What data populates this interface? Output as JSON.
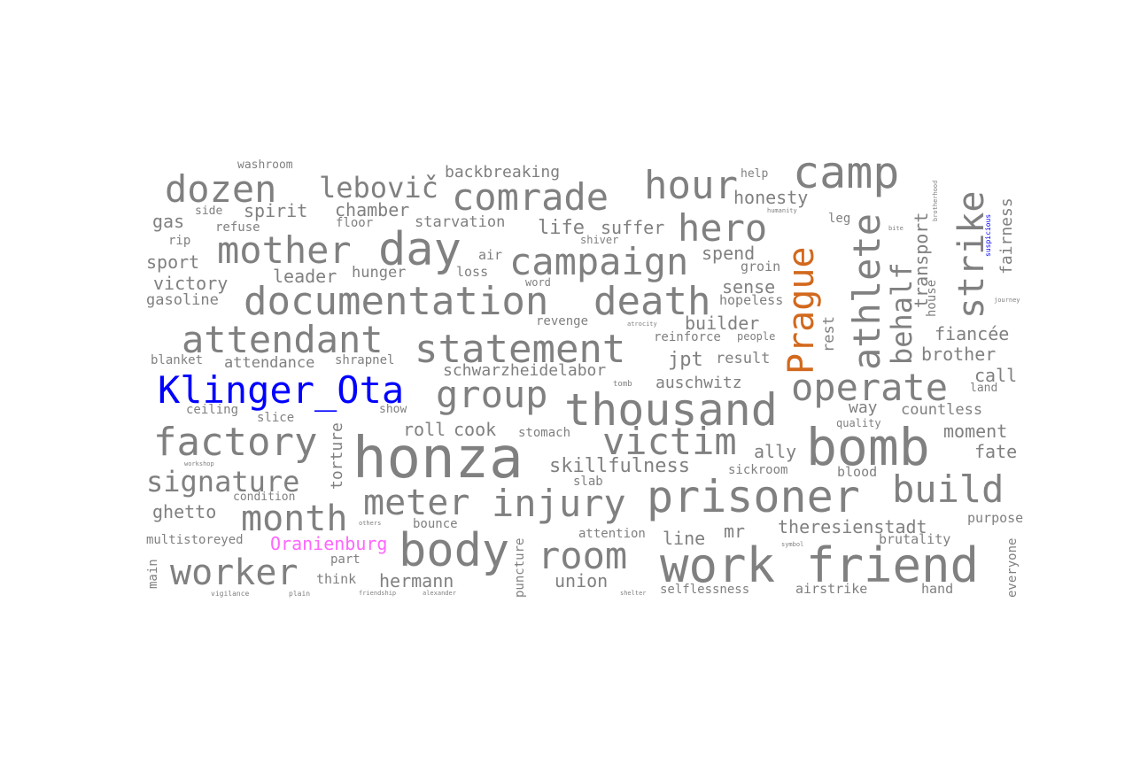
{
  "colors": {
    "default": "#808080",
    "person": "#0000ff",
    "place": "#d2691e",
    "camp": "#ff66ff"
  },
  "words": {
    "honza": "honza",
    "work": "work",
    "friend": "friend",
    "bomb": "bomb",
    "prisoner": "prisoner",
    "thousand": "thousand",
    "documentation": "documentation",
    "death": "death",
    "campaign": "campaign",
    "day": "day",
    "camp": "camp",
    "statement": "statement",
    "Klinger_Ota": "Klinger_Ota",
    "attendant": "attendant",
    "factory": "factory",
    "body": "body",
    "victim": "victim",
    "injury": "injury",
    "comrade": "comrade",
    "mother": "mother",
    "dozen": "dozen",
    "hour": "hour",
    "group": "group",
    "operate": "operate",
    "build": "build",
    "meter": "meter",
    "month": "month",
    "worker": "worker",
    "room": "room",
    "hero": "hero",
    "signature": "signature",
    "Prague": "Prague",
    "athlete": "athlete",
    "strike": "strike",
    "behalf": "behalf",
    "lebovic": "lebovič",
    "spirit": "spirit",
    "chamber": "chamber",
    "backbreaking": "backbreaking",
    "honesty": "honesty",
    "gas": "gas",
    "side": "side",
    "refuse": "refuse",
    "washroom": "washroom",
    "floor": "floor",
    "starvation": "starvation",
    "life": "life",
    "suffer": "suffer",
    "sport": "sport",
    "rip": "rip",
    "leader": "leader",
    "hunger": "hunger",
    "air": "air",
    "loss": "loss",
    "victory": "victory",
    "gasoline": "gasoline",
    "spend": "spend",
    "groin": "groin",
    "sense": "sense",
    "hopeless": "hopeless",
    "builder": "builder",
    "reinforce": "reinforce",
    "people": "people",
    "revenge": "revenge",
    "blanket": "blanket",
    "attendance": "attendance",
    "shrapnel": "shrapnel",
    "schwarzheidelabor": "schwarzheidelabor",
    "jpt": "jpt",
    "result": "result",
    "auschwitz": "auschwitz",
    "ceiling": "ceiling",
    "slice": "slice",
    "show": "show",
    "roll": "roll",
    "cook": "cook",
    "stomach": "stomach",
    "skillfulness": "skillfulness",
    "ally": "ally",
    "sickroom": "sickroom",
    "slab": "slab",
    "blood": "blood",
    "condition": "condition",
    "ghetto": "ghetto",
    "bounce": "bounce",
    "attention": "attention",
    "line": "line",
    "mr": "mr",
    "theresienstadt": "theresienstadt",
    "brutality": "brutality",
    "purpose": "purpose",
    "multistoreyed": "multistoreyed",
    "Oranienburg": "Oranienburg",
    "part": "part",
    "union": "union",
    "think": "think",
    "hermann": "hermann",
    "selflessness": "selflessness",
    "airstrike": "airstrike",
    "hand": "hand",
    "fiancee": "fiancée",
    "brother": "brother",
    "call": "call",
    "land": "land",
    "way": "way",
    "countless": "countless",
    "moment": "moment",
    "fate": "fate",
    "quality": "quality",
    "transport": "transport",
    "fairness": "fairness",
    "rest": "rest",
    "house": "house",
    "leg": "leg",
    "help": "help",
    "word": "word",
    "shiver": "shiver",
    "torture": "torture",
    "puncture": "puncture",
    "main": "main",
    "everyone": "everyone",
    "tomb": "tomb",
    "vigilance": "vigilance",
    "friendship": "friendship",
    "alexander": "alexander",
    "shelter": "shelter",
    "workshop": "workshop",
    "others": "others",
    "symbol": "symbol",
    "brotherhood": "brotherhood",
    "humanity": "humanity",
    "atrocity": "atrocity",
    "journey": "journey",
    "bite": "bite",
    "plain": "plain",
    "suspicious": "suspicious"
  }
}
